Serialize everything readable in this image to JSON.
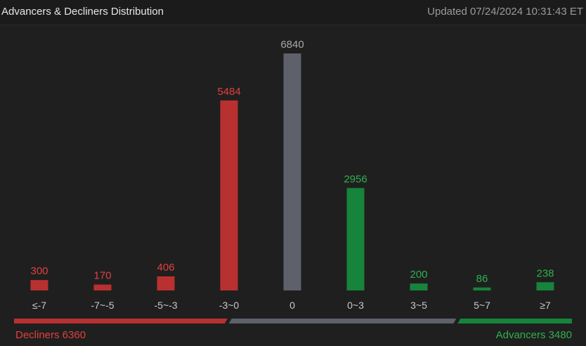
{
  "header": {
    "title": "Advancers & Decliners Distribution",
    "updated": "Updated 07/24/2024 10:31:43 ET"
  },
  "summary": {
    "decliners_label": "Decliners 6360",
    "advancers_label": "Advancers 3480",
    "decliners": 6360,
    "flat": 6840,
    "advancers": 3480
  },
  "colors": {
    "decline": "#b93030",
    "decline_text": "#e04040",
    "flat": "#5e616a",
    "flat_text": "#a8a8a8",
    "advance": "#16843a",
    "advance_text": "#2fb04f",
    "tick_text": "#c8c8c8"
  },
  "chart_data": {
    "type": "bar",
    "categories": [
      "≤-7",
      "-7~-5",
      "-5~-3",
      "-3~0",
      "0",
      "0~3",
      "3~5",
      "5~7",
      "≥7"
    ],
    "values": [
      300,
      170,
      406,
      5484,
      6840,
      2956,
      200,
      86,
      238
    ],
    "groups": [
      "decline",
      "decline",
      "decline",
      "decline",
      "flat",
      "advance",
      "advance",
      "advance",
      "advance"
    ],
    "value_labels": [
      "300",
      "170",
      "406",
      "5484",
      "6840",
      "2956",
      "200",
      "86",
      "238"
    ],
    "ylim": [
      0,
      6840
    ]
  }
}
